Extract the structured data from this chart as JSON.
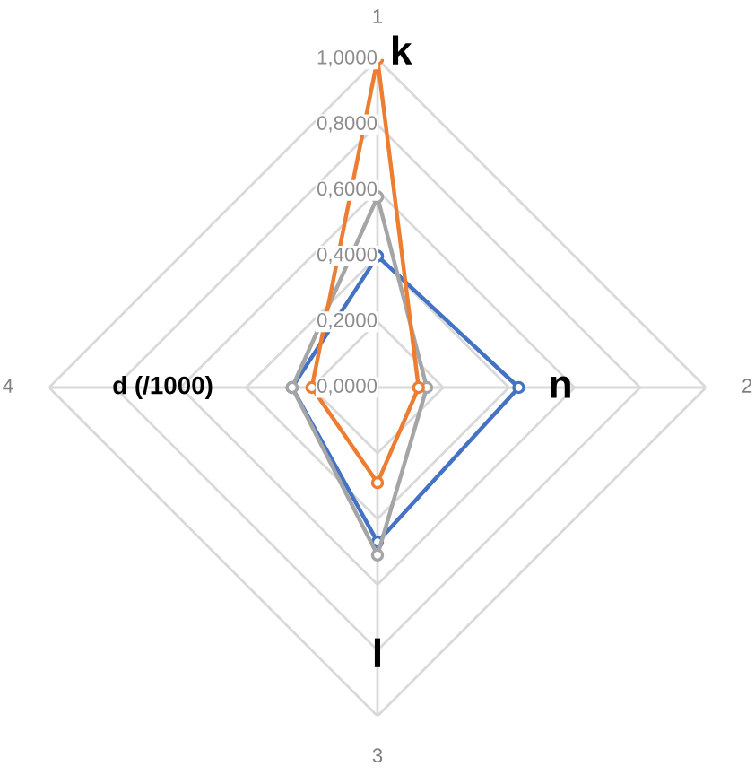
{
  "chart_data": {
    "type": "radar",
    "categories": [
      "1",
      "2",
      "3",
      "4"
    ],
    "series": [
      {
        "color": "#4472c4",
        "values": [
          0.4,
          0.43,
          0.47,
          0.26
        ]
      },
      {
        "color": "#a5a5a5",
        "values": [
          0.58,
          0.15,
          0.51,
          0.26
        ]
      },
      {
        "color": "#ed7d31",
        "values": [
          1.0,
          0.125,
          0.29,
          0.2
        ]
      }
    ],
    "ylim": [
      0,
      1.0
    ],
    "yticks": [
      {
        "value": 0,
        "label": "0,0000"
      },
      {
        "value": 0.2,
        "label": "0,2000"
      },
      {
        "value": 0.4,
        "label": "0,4000"
      },
      {
        "value": 0.6,
        "label": "0,6000"
      },
      {
        "value": 0.8,
        "label": "0,8000"
      },
      {
        "value": 1.0,
        "label": "1,0000"
      }
    ],
    "grid": true,
    "marker": "circle",
    "line_style": "solid",
    "legend": false,
    "annotations": [
      "k",
      "n",
      "l",
      "d (/1000)"
    ]
  }
}
